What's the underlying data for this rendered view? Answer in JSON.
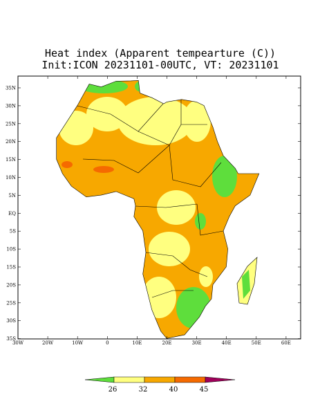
{
  "map": {
    "title": "Heat index (Apparent tempearture (C))",
    "subtitle": "Init:ICON 20231101-00UTC, VT: 20231101",
    "lat_labels": [
      "35N",
      "30N",
      "25N",
      "20N",
      "15N",
      "10N",
      "5N",
      "EQ",
      "5S",
      "10S",
      "15S",
      "20S",
      "25S",
      "30S",
      "35S"
    ],
    "lon_labels": [
      "30W",
      "20W",
      "10W",
      "0",
      "10E",
      "20E",
      "30E",
      "40E",
      "50E",
      "60E"
    ],
    "colorbar": {
      "ticks": [
        26,
        32,
        40,
        45
      ],
      "colors": [
        "#5ede3c",
        "#ffff80",
        "#f7a800",
        "#f56a00",
        "#a0005a"
      ]
    }
  }
}
